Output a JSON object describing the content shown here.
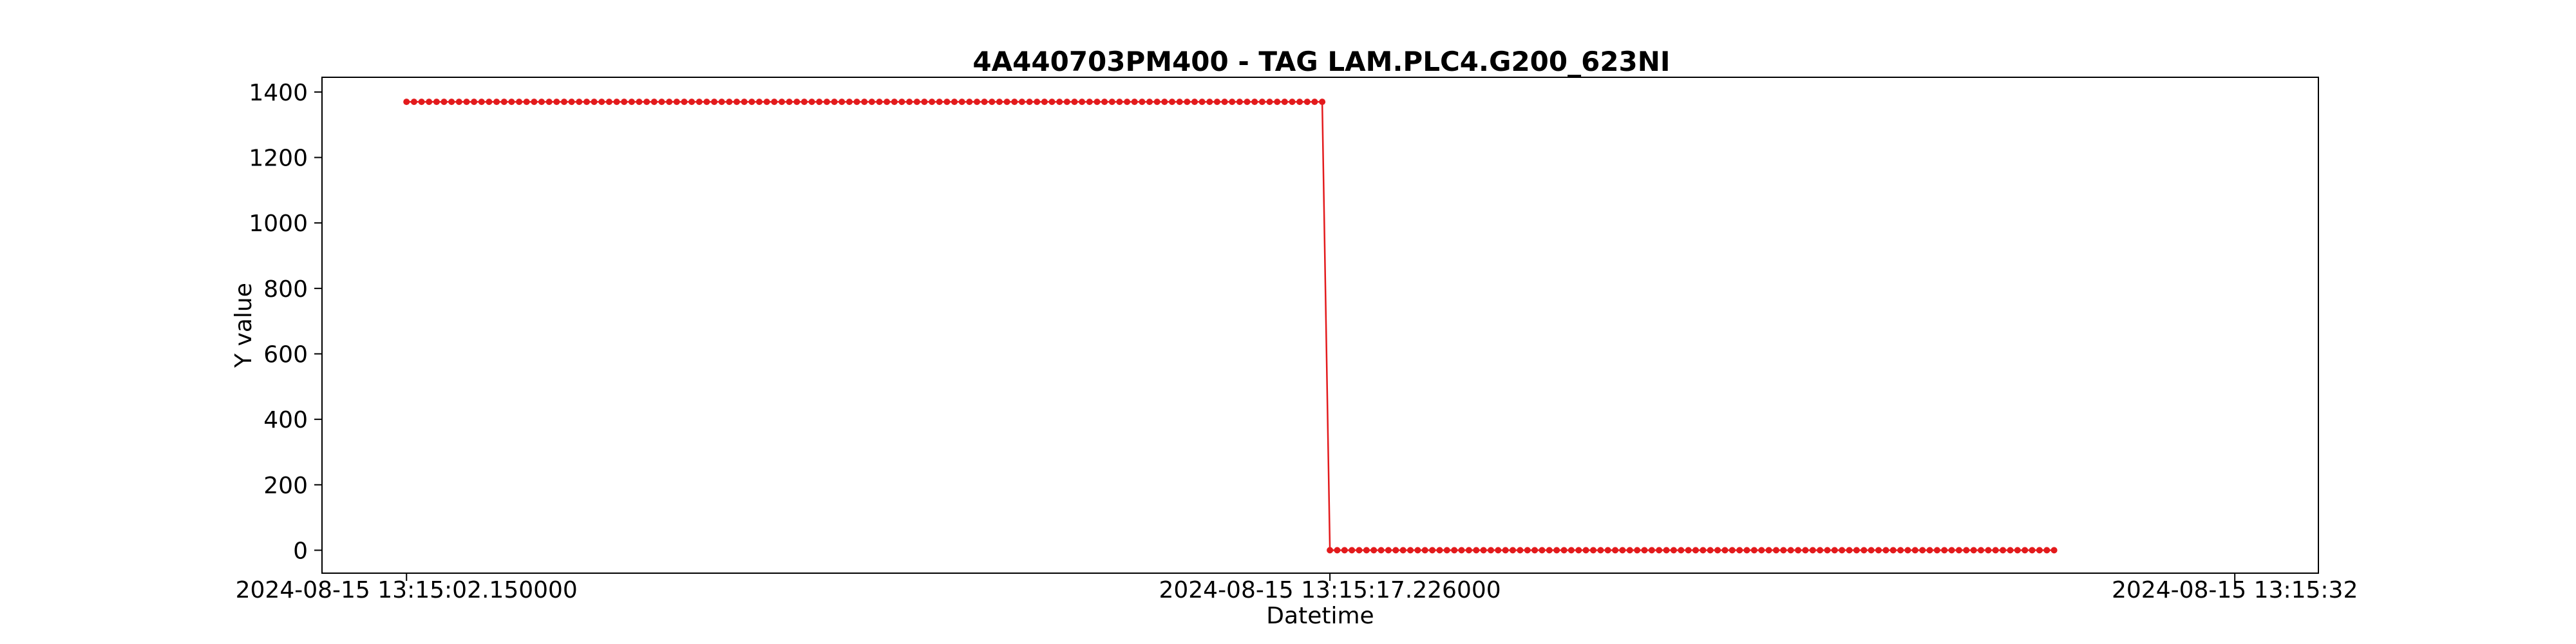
{
  "chart_data": {
    "type": "line",
    "title": "4A440703PM400 - TAG LAM.PLC4.G200_623NI",
    "xlabel": "Datetime",
    "ylabel": "Y value",
    "x_tick_labels": [
      "2024-08-15 13:15:02.150000",
      "2024-08-15 13:15:17.226000",
      "2024-08-15 13:15:32"
    ],
    "x_tick_seconds_after_13_15_00": [
      2.15,
      17.226,
      32.0
    ],
    "y_ticks": [
      0,
      200,
      400,
      600,
      800,
      1000,
      1200,
      1400
    ],
    "ylim": [
      -70,
      1445
    ],
    "grid": false,
    "series": [
      {
        "color": "#e31a1c",
        "marker": "circle",
        "segments": [
          {
            "value": 1370,
            "count": 123,
            "start_seconds_after_13_15_00": 2.15,
            "end_seconds_after_13_15_00": 17.1
          },
          {
            "value": 0,
            "count": 100,
            "start_seconds_after_13_15_00": 17.226,
            "end_seconds_after_13_15_00": 29.05
          }
        ]
      }
    ]
  }
}
